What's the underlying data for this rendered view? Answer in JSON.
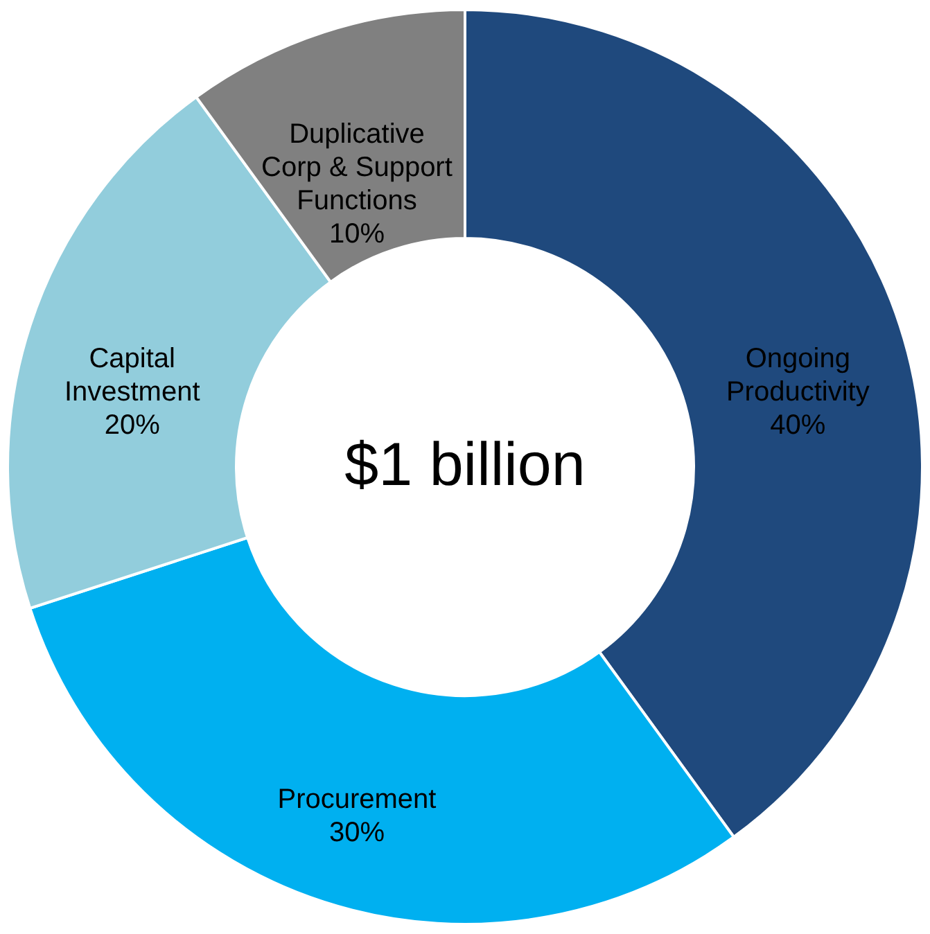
{
  "chart_data": {
    "type": "donut",
    "categories": [
      "Ongoing Productivity",
      "Procurement",
      "Capital Investment",
      "Duplicative Corp & Support Functions"
    ],
    "values": [
      40,
      30,
      20,
      10
    ],
    "colors": [
      "#1f497d",
      "#00b0f0",
      "#92cddc",
      "#808080"
    ],
    "value_labels": [
      "40%",
      "30%",
      "20%",
      "10%"
    ],
    "legend": false,
    "annotations": [
      "$1 billion"
    ]
  }
}
